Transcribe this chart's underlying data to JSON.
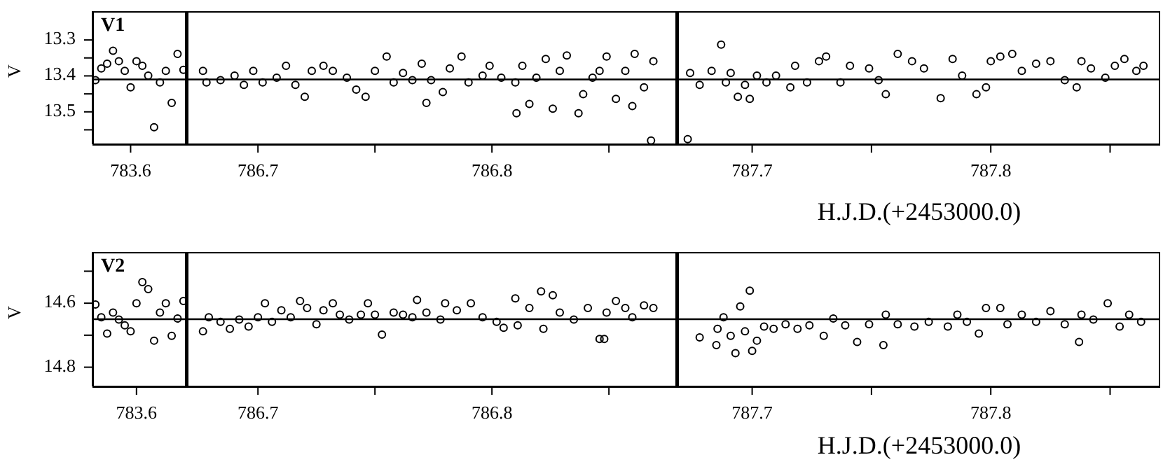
{
  "chart_data": [
    {
      "type": "scatter",
      "ylabel": "V",
      "annotations": [
        "V1"
      ],
      "marker": "circle",
      "color": "#000000",
      "ylim": [
        13.59,
        13.22
      ],
      "yticks": [
        13.3,
        13.4,
        13.5,
        {
          "value": 13.35,
          "label": null
        },
        {
          "value": 13.45,
          "label": null
        },
        {
          "value": 13.55,
          "label": null
        }
      ],
      "ref_lines": [
        {
          "axis": "y",
          "value": 13.41
        }
      ],
      "categories": [
        null,
        null,
        null,
        null,
        null,
        null,
        "783.6",
        null,
        null,
        null,
        null,
        null,
        null,
        null,
        null,
        null
      ],
      "values": [
        13.412,
        13.379,
        13.366,
        13.33,
        13.359,
        13.386,
        13.432,
        13.359,
        13.372,
        13.399,
        13.543,
        13.418,
        13.386,
        13.475,
        13.339,
        13.383
      ]
    },
    {
      "type": "scatter",
      "tick_labels": "x",
      "marker": "circle",
      "color": "#000000",
      "xlim": [
        786.67,
        786.879
      ],
      "xticks": [
        786.7,
        {
          "value": 786.75,
          "label": null
        },
        786.8,
        {
          "value": 786.85,
          "label": null
        }
      ],
      "ylim": [
        13.59,
        13.22
      ],
      "yticks": [
        13.3,
        13.4,
        13.5,
        {
          "value": 13.35,
          "label": null
        },
        {
          "value": 13.45,
          "label": null
        },
        {
          "value": 13.55,
          "label": null
        }
      ],
      "ref_lines": [
        {
          "axis": "y",
          "value": 13.41
        }
      ],
      "x": [
        786.6765,
        786.678,
        786.684,
        786.69,
        786.694,
        786.698,
        786.702,
        786.708,
        786.712,
        786.716,
        786.72,
        786.723,
        786.728,
        786.732,
        786.738,
        786.742,
        786.746,
        786.75,
        786.755,
        786.758,
        786.762,
        786.766,
        786.77,
        786.772,
        786.774,
        786.779,
        786.782,
        786.787,
        786.79,
        786.796,
        786.799,
        786.804,
        786.81,
        786.8105,
        786.813,
        786.816,
        786.819,
        786.823,
        786.826,
        786.829,
        786.832,
        786.837,
        786.839,
        786.843,
        786.846,
        786.849,
        786.853,
        786.857,
        786.86,
        786.861,
        786.865,
        786.868,
        786.869
      ],
      "values": [
        13.386,
        13.418,
        13.412,
        13.399,
        13.425,
        13.386,
        13.418,
        13.405,
        13.372,
        13.425,
        13.458,
        13.386,
        13.372,
        13.386,
        13.405,
        13.438,
        13.458,
        13.386,
        13.346,
        13.418,
        13.392,
        13.412,
        13.366,
        13.475,
        13.412,
        13.445,
        13.379,
        13.346,
        13.418,
        13.399,
        13.372,
        13.405,
        13.418,
        13.504,
        13.372,
        13.478,
        13.405,
        13.353,
        13.491,
        13.386,
        13.343,
        13.504,
        13.451,
        13.405,
        13.386,
        13.346,
        13.464,
        13.386,
        13.484,
        13.339,
        13.432,
        13.58,
        13.359
      ]
    },
    {
      "type": "scatter",
      "tick_labels": "x",
      "xlabel": "H.J.D.(+2453000.0)",
      "marker": "circle",
      "color": "#000000",
      "xlim": [
        787.669,
        787.871
      ],
      "xticks": [
        787.7,
        {
          "value": 787.75,
          "label": null
        },
        787.8,
        {
          "value": 787.85,
          "label": null
        }
      ],
      "ylim": [
        13.59,
        13.22
      ],
      "yticks": [
        13.3,
        13.4,
        13.5,
        {
          "value": 13.35,
          "label": null
        },
        {
          "value": 13.45,
          "label": null
        },
        {
          "value": 13.55,
          "label": null
        }
      ],
      "ref_lines": [
        {
          "axis": "y",
          "value": 13.41
        }
      ],
      "x": [
        787.673,
        787.674,
        787.678,
        787.683,
        787.687,
        787.689,
        787.691,
        787.694,
        787.697,
        787.699,
        787.702,
        787.706,
        787.71,
        787.716,
        787.718,
        787.723,
        787.728,
        787.731,
        787.737,
        787.741,
        787.749,
        787.753,
        787.756,
        787.761,
        787.767,
        787.772,
        787.779,
        787.784,
        787.788,
        787.794,
        787.798,
        787.8,
        787.804,
        787.809,
        787.813,
        787.819,
        787.825,
        787.831,
        787.836,
        787.838,
        787.842,
        787.848,
        787.852,
        787.856,
        787.861,
        787.864
      ],
      "values": [
        13.576,
        13.392,
        13.425,
        13.386,
        13.313,
        13.418,
        13.392,
        13.458,
        13.425,
        13.464,
        13.399,
        13.418,
        13.399,
        13.432,
        13.372,
        13.418,
        13.359,
        13.346,
        13.418,
        13.372,
        13.379,
        13.412,
        13.451,
        13.339,
        13.359,
        13.379,
        13.462,
        13.353,
        13.399,
        13.451,
        13.432,
        13.359,
        13.346,
        13.339,
        13.386,
        13.366,
        13.359,
        13.412,
        13.432,
        13.359,
        13.379,
        13.405,
        13.372,
        13.353,
        13.386,
        13.372
      ]
    },
    {
      "type": "scatter",
      "ylabel": "V",
      "annotations": [
        "V2"
      ],
      "marker": "circle",
      "color": "#000000",
      "ylim": [
        14.86,
        14.44
      ],
      "yticks": [
        14.6,
        14.8,
        {
          "value": 14.5,
          "label": null
        },
        {
          "value": 14.7,
          "label": null
        }
      ],
      "ref_lines": [
        {
          "axis": "y",
          "value": 14.65
        }
      ],
      "categories": [
        null,
        null,
        null,
        null,
        null,
        null,
        null,
        "783.6",
        null,
        null,
        null,
        null,
        null,
        null,
        null,
        null
      ],
      "values": [
        14.604,
        14.644,
        14.695,
        14.629,
        14.651,
        14.669,
        14.688,
        14.6,
        14.534,
        14.556,
        14.717,
        14.629,
        14.6,
        14.702,
        14.648,
        14.593
      ]
    },
    {
      "type": "scatter",
      "tick_labels": "x",
      "marker": "circle",
      "color": "#000000",
      "xlim": [
        786.67,
        786.879
      ],
      "xticks": [
        786.7,
        {
          "value": 786.75,
          "label": null
        },
        786.8,
        {
          "value": 786.85,
          "label": null
        }
      ],
      "ylim": [
        14.86,
        14.44
      ],
      "yticks": [
        14.6,
        14.8,
        {
          "value": 14.5,
          "label": null
        },
        {
          "value": 14.7,
          "label": null
        }
      ],
      "ref_lines": [
        {
          "axis": "y",
          "value": 14.65
        }
      ],
      "x": [
        786.6765,
        786.679,
        786.684,
        786.688,
        786.692,
        786.696,
        786.7,
        786.703,
        786.706,
        786.71,
        786.714,
        786.718,
        786.721,
        786.725,
        786.728,
        786.732,
        786.735,
        786.739,
        786.744,
        786.747,
        786.75,
        786.753,
        786.758,
        786.762,
        786.766,
        786.768,
        786.772,
        786.778,
        786.78,
        786.785,
        786.791,
        786.796,
        786.802,
        786.805,
        786.81,
        786.811,
        786.816,
        786.821,
        786.822,
        786.826,
        786.829,
        786.835,
        786.841,
        786.846,
        786.848,
        786.849,
        786.853,
        786.857,
        786.86,
        786.865,
        786.869
      ],
      "values": [
        14.688,
        14.644,
        14.658,
        14.68,
        14.651,
        14.673,
        14.644,
        14.6,
        14.658,
        14.622,
        14.644,
        14.593,
        14.615,
        14.666,
        14.622,
        14.6,
        14.636,
        14.651,
        14.636,
        14.6,
        14.636,
        14.698,
        14.629,
        14.636,
        14.644,
        14.59,
        14.629,
        14.651,
        14.6,
        14.622,
        14.6,
        14.644,
        14.658,
        14.677,
        14.585,
        14.669,
        14.615,
        14.563,
        14.68,
        14.575,
        14.629,
        14.651,
        14.615,
        14.712,
        14.712,
        14.629,
        14.593,
        14.615,
        14.644,
        14.607,
        14.615
      ]
    },
    {
      "type": "scatter",
      "tick_labels": "x",
      "xlabel": "H.J.D.(+2453000.0)",
      "marker": "circle",
      "color": "#000000",
      "xlim": [
        787.669,
        787.871
      ],
      "xticks": [
        787.7,
        {
          "value": 787.75,
          "label": null
        },
        787.8,
        {
          "value": 787.85,
          "label": null
        }
      ],
      "ylim": [
        14.86,
        14.44
      ],
      "yticks": [
        14.6,
        14.8,
        {
          "value": 14.5,
          "label": null
        },
        {
          "value": 14.7,
          "label": null
        }
      ],
      "ref_lines": [
        {
          "axis": "y",
          "value": 14.65
        }
      ],
      "x": [
        787.678,
        787.685,
        787.6855,
        787.688,
        787.691,
        787.693,
        787.695,
        787.697,
        787.699,
        787.7,
        787.702,
        787.705,
        787.709,
        787.714,
        787.719,
        787.724,
        787.73,
        787.734,
        787.739,
        787.744,
        787.749,
        787.755,
        787.756,
        787.761,
        787.768,
        787.774,
        787.782,
        787.786,
        787.79,
        787.795,
        787.798,
        787.804,
        787.807,
        787.813,
        787.819,
        787.825,
        787.831,
        787.837,
        787.838,
        787.843,
        787.849,
        787.854,
        787.858,
        787.863
      ],
      "values": [
        14.707,
        14.731,
        14.68,
        14.644,
        14.702,
        14.756,
        14.61,
        14.688,
        14.561,
        14.749,
        14.717,
        14.673,
        14.68,
        14.666,
        14.68,
        14.669,
        14.702,
        14.648,
        14.669,
        14.721,
        14.666,
        14.731,
        14.636,
        14.666,
        14.673,
        14.658,
        14.673,
        14.636,
        14.658,
        14.695,
        14.615,
        14.615,
        14.666,
        14.636,
        14.658,
        14.625,
        14.666,
        14.721,
        14.636,
        14.651,
        14.6,
        14.673,
        14.636,
        14.658
      ]
    }
  ]
}
